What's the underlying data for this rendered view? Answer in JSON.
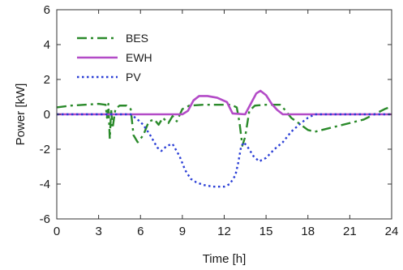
{
  "chart_data": {
    "type": "line",
    "title": "",
    "xlabel": "Time [h]",
    "ylabel": "Power [kW]",
    "xlim": [
      0,
      24
    ],
    "ylim": [
      -6,
      6
    ],
    "xticks": [
      0,
      3,
      6,
      9,
      12,
      15,
      18,
      21,
      24
    ],
    "yticks": [
      -6,
      -4,
      -2,
      0,
      2,
      4,
      6
    ],
    "grid": false,
    "legend_position": "top-left",
    "series": [
      {
        "name": "BES",
        "style": "dashdot",
        "color": "#2a8a2a",
        "points": [
          [
            0,
            0.4
          ],
          [
            1,
            0.5
          ],
          [
            2,
            0.55
          ],
          [
            3,
            0.6
          ],
          [
            3.5,
            0.55
          ],
          [
            3.6,
            -0.2
          ],
          [
            3.7,
            0.6
          ],
          [
            3.8,
            -1.4
          ],
          [
            3.9,
            0.3
          ],
          [
            4.0,
            -0.8
          ],
          [
            4.2,
            0.3
          ],
          [
            4.5,
            0.5
          ],
          [
            5.0,
            0.5
          ],
          [
            5.3,
            0.3
          ],
          [
            5.5,
            -1.2
          ],
          [
            5.8,
            -1.6
          ],
          [
            6.2,
            -1.2
          ],
          [
            6.6,
            -0.4
          ],
          [
            7.0,
            -0.3
          ],
          [
            7.3,
            -0.6
          ],
          [
            7.6,
            -0.2
          ],
          [
            8.0,
            -0.5
          ],
          [
            8.3,
            -0.1
          ],
          [
            8.6,
            -0.4
          ],
          [
            9.0,
            0.3
          ],
          [
            9.5,
            0.5
          ],
          [
            10.5,
            0.55
          ],
          [
            12.5,
            0.55
          ],
          [
            12.9,
            0.4
          ],
          [
            13.1,
            -0.5
          ],
          [
            13.3,
            -1.8
          ],
          [
            13.5,
            -1.3
          ],
          [
            13.8,
            0.2
          ],
          [
            14.2,
            0.5
          ],
          [
            15,
            0.55
          ],
          [
            16,
            0.55
          ],
          [
            16.3,
            0.3
          ],
          [
            16.8,
            -0.2
          ],
          [
            17.5,
            -0.6
          ],
          [
            18.0,
            -0.9
          ],
          [
            18.5,
            -1.0
          ],
          [
            19,
            -0.9
          ],
          [
            20,
            -0.7
          ],
          [
            21,
            -0.5
          ],
          [
            22,
            -0.3
          ],
          [
            23,
            0.1
          ],
          [
            23.5,
            0.3
          ],
          [
            24,
            0.45
          ]
        ]
      },
      {
        "name": "EWH",
        "style": "solid",
        "color": "#b34bc7",
        "points": [
          [
            0,
            0
          ],
          [
            9.0,
            0
          ],
          [
            9.4,
            0.2
          ],
          [
            9.8,
            0.8
          ],
          [
            10.2,
            1.05
          ],
          [
            10.8,
            1.05
          ],
          [
            11.5,
            0.95
          ],
          [
            12.2,
            0.7
          ],
          [
            12.6,
            0.05
          ],
          [
            13.5,
            0
          ],
          [
            13.9,
            0.6
          ],
          [
            14.3,
            1.2
          ],
          [
            14.6,
            1.35
          ],
          [
            15.0,
            1.1
          ],
          [
            15.4,
            0.6
          ],
          [
            15.8,
            0.25
          ],
          [
            16.2,
            0
          ],
          [
            24,
            0
          ]
        ]
      },
      {
        "name": "PV",
        "style": "dotted",
        "color": "#2b3fd6",
        "points": [
          [
            0,
            0
          ],
          [
            5.3,
            0
          ],
          [
            5.8,
            -0.3
          ],
          [
            6.2,
            -0.6
          ],
          [
            6.7,
            -1.2
          ],
          [
            7.2,
            -1.9
          ],
          [
            7.5,
            -2.1
          ],
          [
            7.9,
            -1.8
          ],
          [
            8.3,
            -1.7
          ],
          [
            8.8,
            -2.4
          ],
          [
            9.2,
            -3.2
          ],
          [
            9.6,
            -3.7
          ],
          [
            10.0,
            -3.9
          ],
          [
            10.5,
            -4.05
          ],
          [
            11.2,
            -4.15
          ],
          [
            12.0,
            -4.15
          ],
          [
            12.4,
            -4.0
          ],
          [
            12.8,
            -3.5
          ],
          [
            13.0,
            -2.8
          ],
          [
            13.2,
            -1.9
          ],
          [
            13.4,
            -1.6
          ],
          [
            13.7,
            -1.9
          ],
          [
            14.1,
            -2.4
          ],
          [
            14.5,
            -2.7
          ],
          [
            15.0,
            -2.5
          ],
          [
            15.6,
            -2.0
          ],
          [
            16.2,
            -1.6
          ],
          [
            16.8,
            -1.0
          ],
          [
            17.5,
            -0.5
          ],
          [
            18.0,
            -0.2
          ],
          [
            18.5,
            0
          ],
          [
            24,
            0
          ]
        ]
      }
    ]
  }
}
